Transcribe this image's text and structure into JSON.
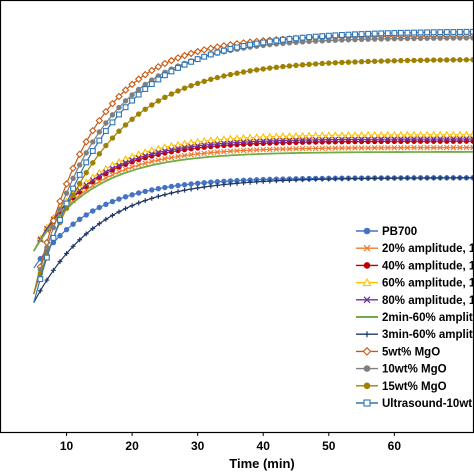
{
  "chart_data": {
    "type": "line",
    "title": "",
    "xlabel": "Time (min)",
    "ylabel": "",
    "xlim": [
      0,
      72
    ],
    "ylim": [
      0,
      100
    ],
    "xticks": [
      10,
      20,
      30,
      40,
      50,
      60
    ],
    "grid": false,
    "legend_position": "bottom-right",
    "series": [
      {
        "name": "PB700",
        "color": "#4472c4",
        "marker": "circle",
        "start": 38,
        "plateau": 59,
        "tau": 9
      },
      {
        "name": "20% amplitude, 1",
        "color": "#ed7d31",
        "marker": "x",
        "start": 42,
        "plateau": 66,
        "tau": 9
      },
      {
        "name": "40% amplitude, 1",
        "color": "#c00000",
        "marker": "circle",
        "start": 42,
        "plateau": 67.5,
        "tau": 9
      },
      {
        "name": "60% amplitude, 1",
        "color": "#ffc000",
        "marker": "triangle",
        "start": 42,
        "plateau": 69,
        "tau": 9
      },
      {
        "name": "80% amplitude, 1",
        "color": "#7030a0",
        "marker": "x",
        "start": 42,
        "plateau": 68,
        "tau": 9
      },
      {
        "name": "2min-60% amplit",
        "color": "#70ad47",
        "marker": "none",
        "start": 42,
        "plateau": 65,
        "tau": 9
      },
      {
        "name": "3min-60% amplit",
        "color": "#203864",
        "marker": "plus",
        "start": 30,
        "plateau": 59,
        "tau": 10
      },
      {
        "name": "5wt% MgO",
        "color": "#c55a11",
        "marker": "diamond",
        "start": 32,
        "plateau": 92,
        "tau": 9
      },
      {
        "name": "10wt% MgO",
        "color": "#7f7f7f",
        "marker": "circle",
        "start": 32,
        "plateau": 91.5,
        "tau": 10
      },
      {
        "name": "15wt% MgO",
        "color": "#a08000",
        "marker": "circle",
        "start": 32,
        "plateau": 86.5,
        "tau": 11
      },
      {
        "name": "Ultrasound-10wt",
        "color": "#2e75b6",
        "marker": "square",
        "start": 30,
        "plateau": 93,
        "tau": 11
      }
    ]
  }
}
